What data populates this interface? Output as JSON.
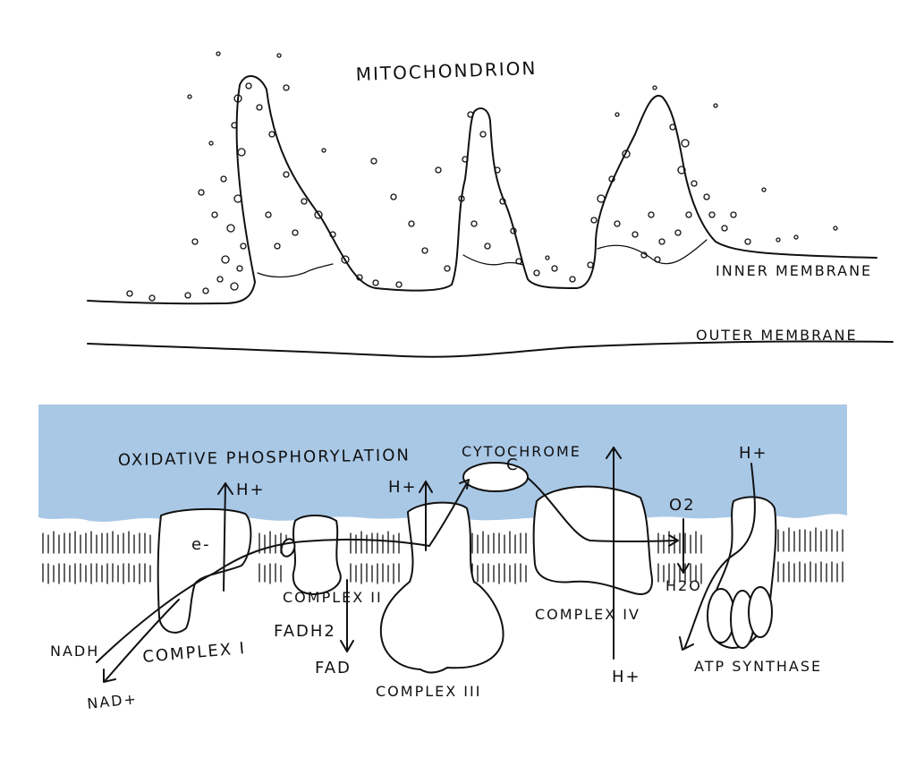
{
  "colors": {
    "ink": "#111111",
    "cytosol_blue": "#a9c8e6",
    "paper": "#ffffff"
  },
  "top_diagram": {
    "title": "MITOCHONDRION",
    "inner_membrane_label": "INNER MEMBRANE",
    "outer_membrane_label": "OUTER MEMBRANE"
  },
  "bottom_diagram": {
    "title": "OXIDATIVE PHOSPHORYLATION",
    "complex_1": "COMPLEX I",
    "complex_2": "COMPLEX II",
    "complex_3": "COMPLEX III",
    "complex_4": "COMPLEX IV",
    "atp_synthase": "ATP SYNTHASE",
    "cytochrome_c_line1": "CYTOCHROME",
    "cytochrome_c_line2": "C",
    "nadh": "NADH",
    "nad_plus": "NAD+",
    "fadh2": "FADH2",
    "fad": "FAD",
    "electron": "e-",
    "h_plus_complex1": "H+",
    "h_plus_complex3": "H+",
    "h_plus_complex4_bottom": "H+",
    "h_plus_atp": "H+",
    "o2": "O2",
    "h2o": "H2O"
  }
}
